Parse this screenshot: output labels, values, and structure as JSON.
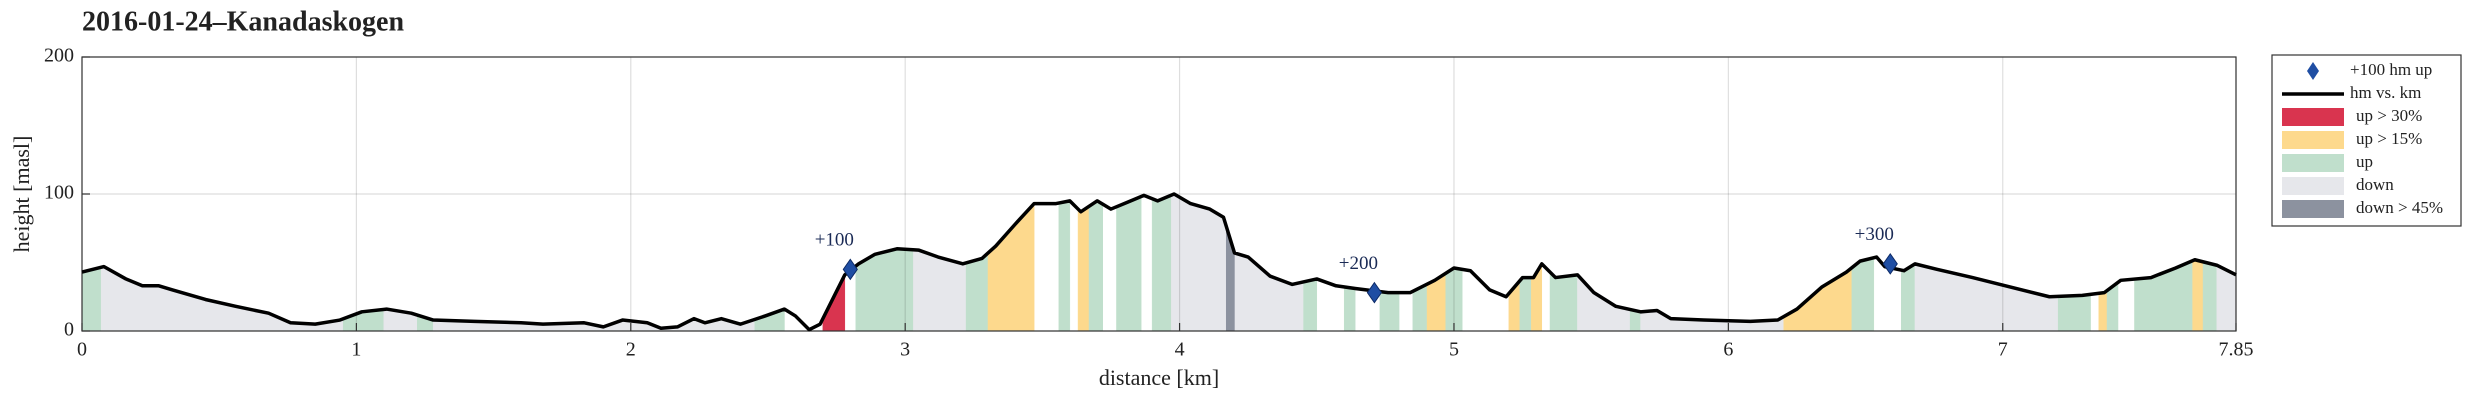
{
  "chart_data": {
    "type": "elevation-profile",
    "title": "2016-01-24–Kanadaskogen",
    "x_label": "distance [km]",
    "y_label": "height [masl]",
    "xlim": [
      0,
      7.85
    ],
    "ylim": [
      0,
      200
    ],
    "xticks": [
      0,
      1,
      2,
      3,
      4,
      5,
      6,
      7,
      7.85
    ],
    "yticks": [
      0,
      100,
      200
    ],
    "grid": true,
    "legend": "outside-right",
    "line": {
      "name": "hm vs. km",
      "color": "#000000",
      "x": [
        0,
        0.08,
        0.16,
        0.22,
        0.28,
        0.33,
        0.45,
        0.56,
        0.68,
        0.76,
        0.85,
        0.94,
        1.02,
        1.11,
        1.2,
        1.28,
        1.43,
        1.6,
        1.68,
        1.83,
        1.9,
        1.97,
        2.06,
        2.11,
        2.17,
        2.23,
        2.27,
        2.33,
        2.4,
        2.49,
        2.56,
        2.6,
        2.65,
        2.69,
        2.78,
        2.83,
        2.89,
        2.97,
        3.05,
        3.12,
        3.21,
        3.28,
        3.33,
        3.41,
        3.47,
        3.55,
        3.6,
        3.64,
        3.7,
        3.75,
        3.81,
        3.87,
        3.92,
        3.98,
        4.04,
        4.11,
        4.16,
        4.2,
        4.25,
        4.33,
        4.41,
        4.5,
        4.57,
        4.64,
        4.76,
        4.84,
        4.93,
        5.0,
        5.06,
        5.13,
        5.19,
        5.25,
        5.29,
        5.32,
        5.37,
        5.45,
        5.51,
        5.59,
        5.68,
        5.74,
        5.79,
        5.91,
        6.08,
        6.18,
        6.25,
        6.34,
        6.43,
        6.48,
        6.54,
        6.57,
        6.64,
        6.68,
        6.76,
        6.89,
        7.03,
        7.17,
        7.29,
        7.37,
        7.43,
        7.54,
        7.63,
        7.7,
        7.78,
        7.85
      ],
      "values": [
        43,
        47,
        38,
        33,
        33,
        30,
        23,
        18,
        13,
        6,
        5,
        8,
        14,
        16,
        13,
        8,
        7,
        6,
        5,
        6,
        3,
        8,
        6,
        2,
        3,
        9,
        6,
        9,
        5,
        11,
        16,
        11,
        1,
        5,
        41,
        49,
        56,
        60,
        59,
        54,
        49,
        53,
        62,
        80,
        93,
        93,
        95,
        87,
        95,
        89,
        94,
        99,
        95,
        100,
        93,
        89,
        83,
        57,
        54,
        40,
        34,
        38,
        33,
        31,
        28,
        28,
        37,
        46,
        44,
        30,
        25,
        39,
        39,
        49,
        39,
        41,
        28,
        18,
        14,
        15,
        9,
        8,
        7,
        8,
        16,
        32,
        43,
        51,
        54,
        47,
        44,
        49,
        45,
        39,
        32,
        25,
        26,
        28,
        37,
        39,
        46,
        52,
        48,
        41
      ]
    },
    "markers": {
      "name": "+100 hm up",
      "color": "#1f4ea3",
      "x": [
        2.8,
        4.71,
        6.59
      ],
      "values": [
        45,
        28,
        49
      ],
      "labels": [
        "+100",
        "+200",
        "+300"
      ]
    },
    "bands": [
      {
        "name": "up > 30%",
        "color": "#d9344f",
        "ranges": [
          [
            2.7,
            2.78
          ]
        ]
      },
      {
        "name": "up > 15%",
        "color": "#fdd98d",
        "ranges": [
          [
            3.3,
            3.47
          ],
          [
            3.63,
            3.67
          ],
          [
            4.9,
            4.97
          ],
          [
            5.2,
            5.24
          ],
          [
            5.28,
            5.32
          ],
          [
            6.2,
            6.45
          ],
          [
            7.35,
            7.38
          ],
          [
            7.69,
            7.73
          ]
        ]
      },
      {
        "name": "up",
        "color": "#c0dfcc",
        "ranges": [
          [
            0,
            0.07
          ],
          [
            0.95,
            1.1
          ],
          [
            1.22,
            1.28
          ],
          [
            2.45,
            2.56
          ],
          [
            2.82,
            3.03
          ],
          [
            3.22,
            3.3
          ],
          [
            3.56,
            3.6
          ],
          [
            3.67,
            3.72
          ],
          [
            3.77,
            3.86
          ],
          [
            3.9,
            3.97
          ],
          [
            4.45,
            4.5
          ],
          [
            4.6,
            4.64
          ],
          [
            4.73,
            4.8
          ],
          [
            4.85,
            4.9
          ],
          [
            4.97,
            5.03
          ],
          [
            5.24,
            5.28
          ],
          [
            5.35,
            5.45
          ],
          [
            5.64,
            5.68
          ],
          [
            6.45,
            6.53
          ],
          [
            6.63,
            6.68
          ],
          [
            7.2,
            7.32
          ],
          [
            7.38,
            7.42
          ],
          [
            7.48,
            7.69
          ],
          [
            7.73,
            7.78
          ]
        ]
      },
      {
        "name": "down",
        "color": "#e6e7eb",
        "ranges": [
          [
            0.07,
            0.95
          ],
          [
            1.1,
            1.22
          ],
          [
            1.28,
            2.45
          ],
          [
            3.03,
            3.22
          ],
          [
            3.97,
            4.17
          ],
          [
            4.2,
            4.45
          ],
          [
            5.45,
            5.64
          ],
          [
            5.68,
            6.2
          ],
          [
            6.68,
            7.2
          ],
          [
            7.78,
            7.85
          ]
        ]
      },
      {
        "name": "down > 45%",
        "color": "#8c929f",
        "ranges": [
          [
            4.17,
            4.2
          ]
        ]
      }
    ]
  }
}
